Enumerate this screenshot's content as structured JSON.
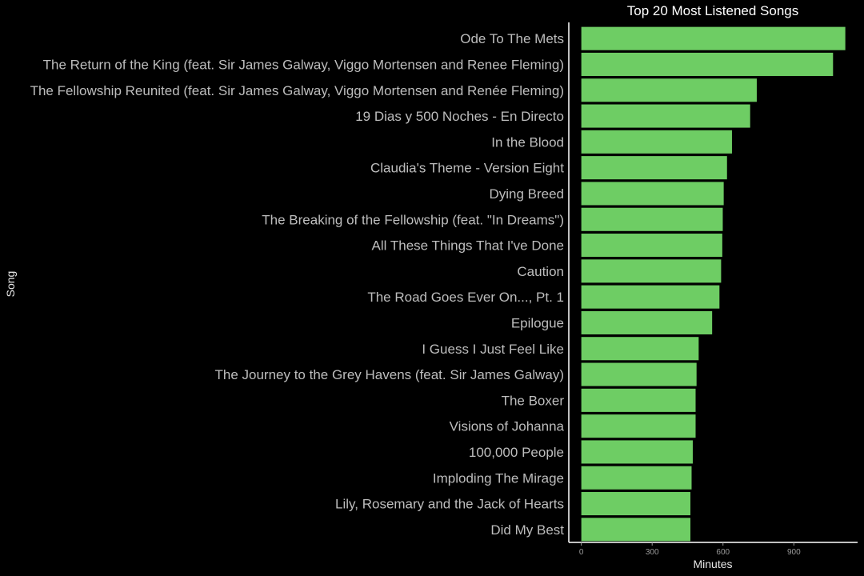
{
  "chart_data": {
    "type": "bar",
    "orientation": "horizontal",
    "title": "Top 20 Most Listened Songs",
    "xlabel": "Minutes",
    "ylabel": "Song",
    "xlim": [
      -53,
      1170
    ],
    "x_ticks": [
      0,
      300,
      600,
      900
    ],
    "grid": false,
    "legend": "none",
    "bar_color": "#6ecd64",
    "background_color": "#000000",
    "categories": [
      "Ode To The Mets",
      "The Return of the King (feat. Sir James Galway, Viggo Mortensen and Renee Fleming)",
      "The Fellowship Reunited (feat. Sir James Galway, Viggo Mortensen and Renée Fleming)",
      "19 Dias y 500 Noches - En Directo",
      "In the Blood",
      "Claudia's Theme - Version Eight",
      "Dying Breed",
      "The Breaking of the Fellowship (feat. \"In Dreams\")",
      "All These Things That I've Done",
      "Caution",
      "The Road Goes Ever On..., Pt. 1",
      "Epilogue",
      "I Guess I Just Feel Like",
      "The Journey to the Grey Havens (feat. Sir James Galway)",
      "The Boxer",
      "Visions of Johanna",
      "100,000 People",
      "Imploding The Mirage",
      "Lily, Rosemary and the Jack of Hearts",
      "Did My Best"
    ],
    "values": [
      1118,
      1066,
      743,
      715,
      638,
      617,
      603,
      599,
      597,
      592,
      585,
      554,
      497,
      488,
      484,
      484,
      472,
      467,
      462,
      462
    ]
  }
}
